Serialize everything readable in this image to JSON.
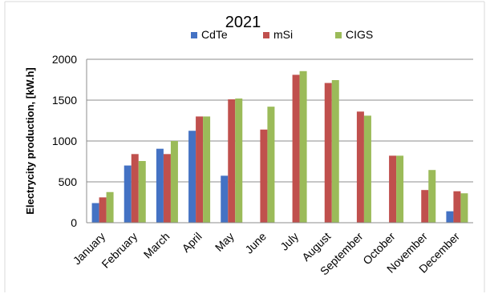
{
  "chart_data": {
    "type": "bar",
    "title": "2021",
    "xlabel": "",
    "ylabel": "Electrycity production, [kW.h]",
    "ylim": [
      0,
      2000
    ],
    "yticks": [
      0,
      500,
      1000,
      1500,
      2000
    ],
    "ytick_labels": [
      "0",
      "500",
      "1000",
      "1500",
      "2000"
    ],
    "grid": true,
    "legend_position": "top",
    "categories": [
      "January",
      "February",
      "March",
      "April",
      "May",
      "June",
      "July",
      "August",
      "September",
      "October",
      "November",
      "December"
    ],
    "series": [
      {
        "name": "CdTe",
        "color": "#4472c4",
        "values": [
          240,
          700,
          905,
          1125,
          575,
          null,
          null,
          null,
          null,
          null,
          null,
          140
        ]
      },
      {
        "name": "mSi",
        "color": "#c0504d",
        "values": [
          310,
          840,
          840,
          1300,
          1510,
          1140,
          1810,
          1710,
          1360,
          820,
          400,
          385
        ]
      },
      {
        "name": "CIGS",
        "color": "#9bbb59",
        "values": [
          375,
          755,
          1000,
          1300,
          1520,
          1420,
          1855,
          1745,
          1310,
          820,
          645,
          360
        ]
      }
    ]
  }
}
